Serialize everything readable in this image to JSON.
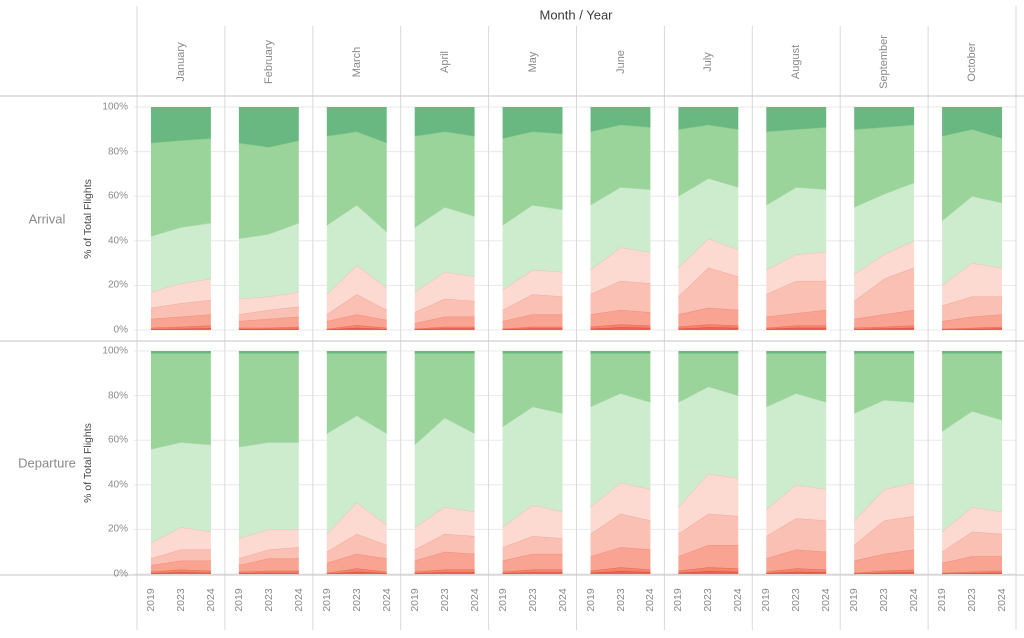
{
  "title": "Month / Year",
  "rows": [
    "Arrival",
    "Departure"
  ],
  "months": [
    "January",
    "February",
    "March",
    "April",
    "May",
    "June",
    "July",
    "August",
    "September",
    "October"
  ],
  "years": [
    "2019",
    "2023",
    "2024"
  ],
  "y_axis": {
    "label": "% of Total Flights",
    "ticks": [
      "0%",
      "20%",
      "40%",
      "60%",
      "80%",
      "100%"
    ],
    "tick_values": [
      0,
      20,
      40,
      60,
      80,
      100
    ]
  },
  "palette": {
    "grid_line": "#e8e8e8",
    "column_separator": "#d9d9d9",
    "row_divider": "#c6c6c6",
    "title_text": "#3c3c3c",
    "axis_text": "#8a8a8a",
    "axis_title_text": "#4a4a4a"
  },
  "chart_data": {
    "type": "area",
    "stacked": true,
    "normalized_percent": true,
    "title": "Month / Year",
    "ylabel": "% of Total Flights",
    "ylim": [
      0,
      100
    ],
    "grid": true,
    "legend": "none",
    "x": [
      "2019",
      "2023",
      "2024"
    ],
    "bands_bottom_to_top": [
      {
        "name": "dark-red",
        "color": "#ef6051",
        "edge": "#d94f41"
      },
      {
        "name": "red",
        "color": "#f58270",
        "edge": "#e86b58"
      },
      {
        "name": "salmon",
        "color": "#f9a492",
        "edge": "#ee8d79"
      },
      {
        "name": "light-pink",
        "color": "#fbc0b4",
        "edge": "#f2a99a"
      },
      {
        "name": "pale-pink",
        "color": "#fcdad2",
        "edge": "#f0c0b4"
      },
      {
        "name": "light-green",
        "color": "#cdeccd",
        "edge": "#b5dfb5"
      },
      {
        "name": "medium-green",
        "color": "#9ad49b",
        "edge": "#7fc584"
      },
      {
        "name": "dark-green",
        "color": "#69b881",
        "edge": "#4fa468"
      }
    ],
    "cumulative_note": "cumulative_tops = running-sum upper boundary (%) of the 7 lower bands at x = 2019/2023/2024; top band ends at 100%",
    "panels": [
      {
        "row": "Arrival",
        "month": "January",
        "cumulative_tops": [
          [
            0.4,
            0.6,
            0.8
          ],
          [
            1,
            1.5,
            2
          ],
          [
            5,
            6,
            7
          ],
          [
            10,
            12,
            13.5
          ],
          [
            17,
            21,
            23
          ],
          [
            42,
            46,
            48
          ],
          [
            84,
            85,
            86
          ]
        ]
      },
      {
        "row": "Arrival",
        "month": "February",
        "cumulative_tops": [
          [
            0.4,
            0.5,
            0.6
          ],
          [
            1,
            1,
            1.5
          ],
          [
            4,
            5,
            6
          ],
          [
            7,
            9,
            10.5
          ],
          [
            14,
            15,
            17
          ],
          [
            41,
            43,
            48
          ],
          [
            84,
            82,
            85
          ]
        ]
      },
      {
        "row": "Arrival",
        "month": "March",
        "cumulative_tops": [
          [
            0.2,
            1,
            0.4
          ],
          [
            0.5,
            2.2,
            1
          ],
          [
            4,
            7,
            4.5
          ],
          [
            7,
            16,
            9
          ],
          [
            16,
            29,
            19
          ],
          [
            47,
            56,
            44
          ],
          [
            87,
            89,
            84
          ]
        ]
      },
      {
        "row": "Arrival",
        "month": "April",
        "cumulative_tops": [
          [
            0.3,
            0.7,
            0.7
          ],
          [
            0.6,
            1.5,
            1.5
          ],
          [
            3,
            6,
            6
          ],
          [
            8,
            14,
            13
          ],
          [
            17,
            26,
            24
          ],
          [
            46,
            55,
            51
          ],
          [
            87,
            89,
            87
          ]
        ]
      },
      {
        "row": "Arrival",
        "month": "May",
        "cumulative_tops": [
          [
            0.3,
            0.7,
            0.7
          ],
          [
            0.6,
            1.5,
            1.5
          ],
          [
            4,
            7,
            7
          ],
          [
            9,
            16,
            15
          ],
          [
            18,
            27,
            26
          ],
          [
            47,
            56,
            54
          ],
          [
            86,
            89,
            88
          ]
        ]
      },
      {
        "row": "Arrival",
        "month": "June",
        "cumulative_tops": [
          [
            0.6,
            1.2,
            1
          ],
          [
            1.5,
            2.5,
            2
          ],
          [
            7,
            9,
            8
          ],
          [
            16,
            22,
            21
          ],
          [
            27,
            37,
            35
          ],
          [
            56,
            64,
            63
          ],
          [
            89,
            92,
            91
          ]
        ]
      },
      {
        "row": "Arrival",
        "month": "July",
        "cumulative_tops": [
          [
            0.6,
            1.2,
            1
          ],
          [
            1.5,
            2.5,
            2
          ],
          [
            7,
            10,
            9
          ],
          [
            15,
            28,
            24
          ],
          [
            28,
            41,
            36
          ],
          [
            60,
            68,
            64
          ],
          [
            90,
            92,
            90
          ]
        ]
      },
      {
        "row": "Arrival",
        "month": "August",
        "cumulative_tops": [
          [
            0.5,
            1,
            1
          ],
          [
            1,
            2,
            2
          ],
          [
            6,
            7.5,
            9
          ],
          [
            16,
            22,
            22
          ],
          [
            27,
            34,
            35
          ],
          [
            56,
            64,
            63
          ],
          [
            89,
            90,
            91
          ]
        ]
      },
      {
        "row": "Arrival",
        "month": "September",
        "cumulative_tops": [
          [
            0.4,
            0.7,
            1
          ],
          [
            1,
            1.5,
            2
          ],
          [
            5,
            7,
            9
          ],
          [
            13,
            23,
            28
          ],
          [
            25,
            34,
            40
          ],
          [
            55,
            61,
            66
          ],
          [
            90,
            91,
            92
          ]
        ]
      },
      {
        "row": "Arrival",
        "month": "October",
        "cumulative_tops": [
          [
            0.2,
            0.5,
            0.7
          ],
          [
            0.5,
            1,
            1.5
          ],
          [
            4,
            6,
            7
          ],
          [
            11,
            15,
            15
          ],
          [
            20,
            30,
            28
          ],
          [
            49,
            60,
            57
          ],
          [
            87,
            90,
            86
          ]
        ]
      },
      {
        "row": "Departure",
        "month": "January",
        "cumulative_tops": [
          [
            0.4,
            0.8,
            0.6
          ],
          [
            1,
            2,
            1.5
          ],
          [
            4,
            6,
            6
          ],
          [
            7,
            11,
            11
          ],
          [
            14,
            21,
            19
          ],
          [
            56,
            59,
            58
          ],
          [
            99,
            99,
            99
          ]
        ]
      },
      {
        "row": "Departure",
        "month": "February",
        "cumulative_tops": [
          [
            0.4,
            0.6,
            0.6
          ],
          [
            1,
            1.5,
            1.5
          ],
          [
            4,
            7,
            7
          ],
          [
            7,
            11,
            12
          ],
          [
            16,
            20,
            20
          ],
          [
            57,
            59,
            59
          ],
          [
            99,
            99,
            99
          ]
        ]
      },
      {
        "row": "Departure",
        "month": "March",
        "cumulative_tops": [
          [
            0.2,
            1,
            0.4
          ],
          [
            0.5,
            2.5,
            1
          ],
          [
            5,
            9,
            7
          ],
          [
            10,
            18,
            13
          ],
          [
            18,
            32,
            22
          ],
          [
            63,
            71,
            63
          ],
          [
            99,
            99,
            99
          ]
        ]
      },
      {
        "row": "Departure",
        "month": "April",
        "cumulative_tops": [
          [
            0.4,
            0.8,
            0.8
          ],
          [
            1,
            2,
            2
          ],
          [
            6,
            10,
            9
          ],
          [
            11,
            18,
            17
          ],
          [
            21,
            30,
            28
          ],
          [
            58,
            70,
            63
          ],
          [
            99,
            99,
            99
          ]
        ]
      },
      {
        "row": "Departure",
        "month": "May",
        "cumulative_tops": [
          [
            0.4,
            0.8,
            0.8
          ],
          [
            1,
            2,
            2
          ],
          [
            6,
            9,
            9
          ],
          [
            12,
            17,
            16
          ],
          [
            21,
            31,
            28
          ],
          [
            66,
            75,
            72
          ],
          [
            99,
            99,
            99
          ]
        ]
      },
      {
        "row": "Departure",
        "month": "June",
        "cumulative_tops": [
          [
            0.6,
            1.3,
            0.9
          ],
          [
            1.5,
            3,
            2
          ],
          [
            8,
            12,
            11
          ],
          [
            18,
            27,
            24
          ],
          [
            30,
            41,
            38
          ],
          [
            75,
            81,
            77
          ],
          [
            99,
            99,
            99
          ]
        ]
      },
      {
        "row": "Departure",
        "month": "July",
        "cumulative_tops": [
          [
            0.6,
            1.3,
            1
          ],
          [
            1.5,
            3,
            2.5
          ],
          [
            8,
            13,
            13
          ],
          [
            18,
            27,
            26
          ],
          [
            30,
            45,
            43
          ],
          [
            77,
            84,
            80
          ],
          [
            99,
            99,
            99
          ]
        ]
      },
      {
        "row": "Departure",
        "month": "August",
        "cumulative_tops": [
          [
            0.4,
            1,
            0.8
          ],
          [
            1,
            2.5,
            2
          ],
          [
            7,
            11,
            10
          ],
          [
            17,
            25,
            24
          ],
          [
            29,
            40,
            38
          ],
          [
            75,
            81,
            77
          ],
          [
            99,
            99,
            99
          ]
        ]
      },
      {
        "row": "Departure",
        "month": "September",
        "cumulative_tops": [
          [
            0.2,
            0.6,
            0.8
          ],
          [
            0.5,
            1.5,
            2
          ],
          [
            6,
            9,
            11
          ],
          [
            13,
            24,
            26
          ],
          [
            24,
            38,
            41
          ],
          [
            72,
            78,
            77
          ],
          [
            99,
            99,
            99
          ]
        ]
      },
      {
        "row": "Departure",
        "month": "October",
        "cumulative_tops": [
          [
            0.2,
            0.4,
            0.6
          ],
          [
            0.5,
            1,
            1.5
          ],
          [
            5,
            8,
            8
          ],
          [
            10,
            19,
            18
          ],
          [
            19,
            30,
            28
          ],
          [
            64,
            73,
            69
          ],
          [
            99,
            99,
            99
          ]
        ]
      }
    ]
  }
}
